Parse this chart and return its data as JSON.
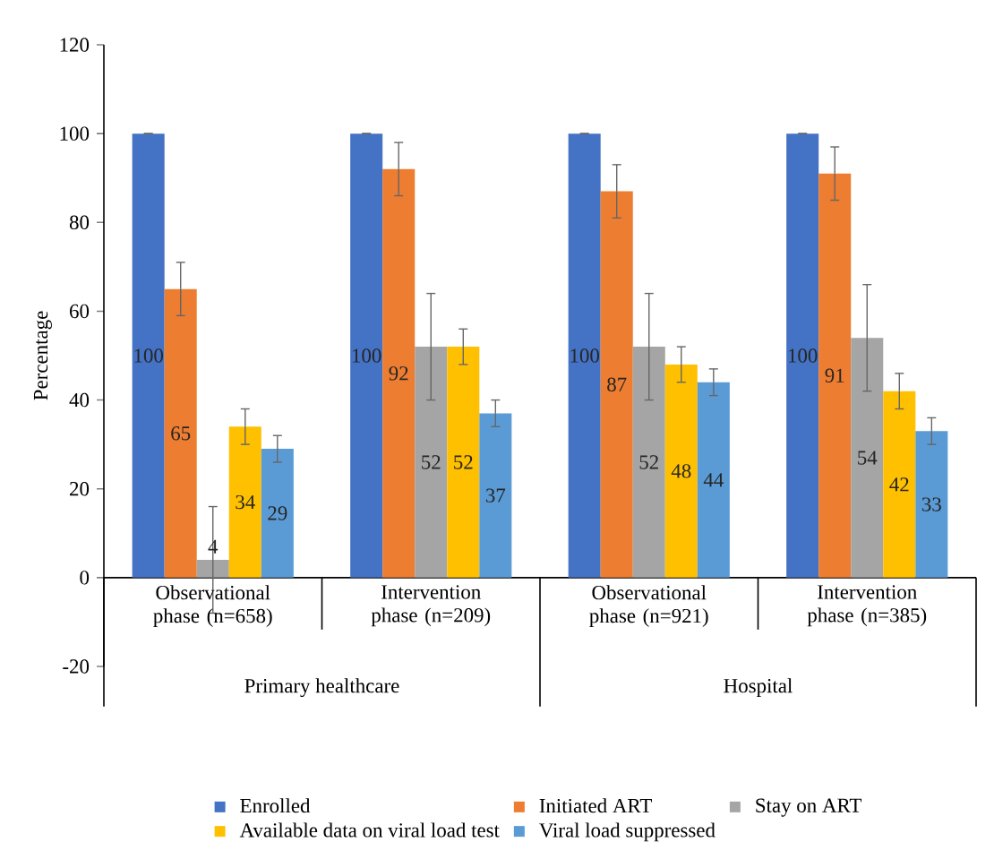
{
  "chart_data": {
    "type": "bar",
    "ylabel": "Percentage",
    "categories": [
      "Observational phase (n=658)",
      "Intervention phase (n=209)",
      "Observational phase (n=921)",
      "Intervention phase (n=385)"
    ],
    "series": [
      {
        "name": "Enrolled",
        "color": "#4472c4",
        "values": [
          100,
          100,
          100,
          100
        ],
        "errors": [
          0,
          0,
          0,
          0
        ]
      },
      {
        "name": "Initiated ART",
        "color": "#ed7d31",
        "values": [
          65,
          92,
          87,
          91
        ],
        "errors": [
          [
            59,
            71
          ],
          [
            86,
            98
          ],
          [
            81,
            93
          ],
          [
            85,
            97
          ]
        ]
      },
      {
        "name": "Stay on ART",
        "color": "#a5a5a5",
        "values": [
          4,
          52,
          52,
          54
        ],
        "errors": [
          [
            -8,
            16
          ],
          [
            40,
            64
          ],
          [
            40,
            64
          ],
          [
            42,
            66
          ]
        ]
      },
      {
        "name": "Available data on viral load test",
        "color": "#ffc000",
        "values": [
          34,
          52,
          48,
          42
        ],
        "errors": [
          [
            30,
            38
          ],
          [
            48,
            56
          ],
          [
            44,
            52
          ],
          [
            38,
            46
          ]
        ]
      },
      {
        "name": "Viral load suppressed",
        "color": "#5b9bd5",
        "values": [
          29,
          37,
          44,
          33
        ],
        "errors": [
          [
            26,
            32
          ],
          [
            34,
            40
          ],
          [
            41,
            47
          ],
          [
            30,
            36
          ]
        ]
      }
    ],
    "annotations": [
      "Primary healthcare",
      "Hospital"
    ],
    "ylim": [
      -20,
      120
    ],
    "yticks": [
      -20,
      0,
      20,
      40,
      60,
      80,
      100,
      120
    ],
    "data_labels": true,
    "grid": false,
    "legend": "bottom"
  }
}
